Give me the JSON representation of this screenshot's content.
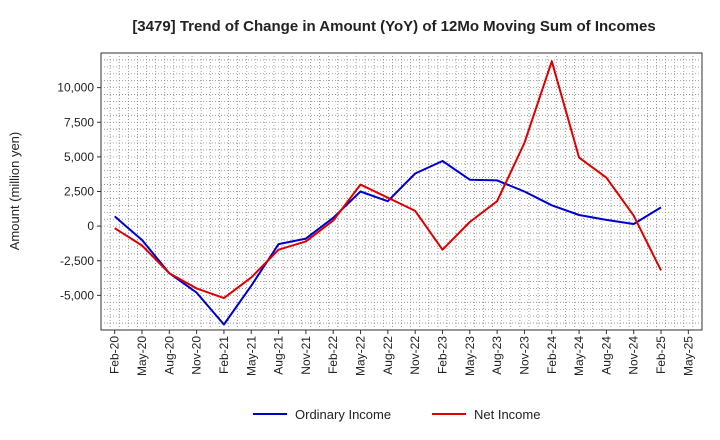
{
  "chart_data": {
    "type": "line",
    "title": "[3479]  Trend of Change in Amount (YoY) of 12Mo Moving Sum of Incomes",
    "xlabel": "",
    "ylabel": "Amount (million yen)",
    "ylim": [
      -7500,
      12500
    ],
    "yticks": [
      -5000,
      -2500,
      0,
      2500,
      5000,
      7500,
      10000
    ],
    "ytick_labels": [
      "-5,000",
      "-2,500",
      "0",
      "2,500",
      "5,000",
      "7,500",
      "10,000"
    ],
    "grid": true,
    "legend_position": "bottom",
    "x": [
      "Feb-20",
      "May-20",
      "Aug-20",
      "Nov-20",
      "Feb-21",
      "May-21",
      "Aug-21",
      "Nov-21",
      "Feb-22",
      "May-22",
      "Aug-22",
      "Nov-22",
      "Feb-23",
      "May-23",
      "Aug-23",
      "Nov-23",
      "Feb-24",
      "May-24",
      "Aug-24",
      "Nov-24",
      "Feb-25",
      "May-25"
    ],
    "series": [
      {
        "name": "Ordinary Income",
        "color": "#0000cc",
        "values": [
          700,
          -1000,
          -3400,
          -4800,
          -7100,
          -4300,
          -1300,
          -900,
          600,
          2500,
          1800,
          3800,
          4700,
          3350,
          3300,
          2500,
          1500,
          800,
          450,
          150,
          1350,
          null
        ]
      },
      {
        "name": "Net Income",
        "color": "#dd0000",
        "values": [
          -150,
          -1400,
          -3400,
          -4500,
          -5200,
          -3700,
          -1700,
          -1100,
          400,
          3000,
          2050,
          1100,
          -1700,
          300,
          1800,
          6000,
          11900,
          4950,
          3500,
          750,
          -3200,
          null
        ]
      }
    ]
  }
}
